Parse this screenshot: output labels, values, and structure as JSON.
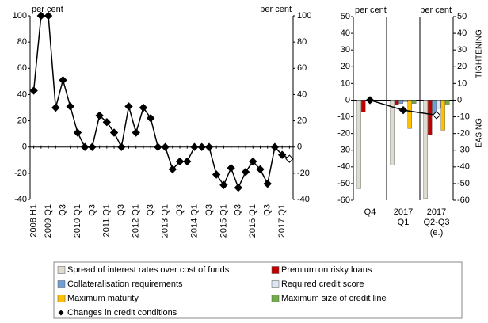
{
  "chart_data": [
    {
      "type": "line",
      "y_axis_label": "per cent",
      "y2_axis_label": "per cent",
      "categories": [
        "2008 H1",
        null,
        "2009 Q1",
        null,
        "Q3",
        null,
        "2010 Q1",
        null,
        "Q3",
        null,
        "2011 Q1",
        null,
        "Q3",
        null,
        "2012 Q1",
        null,
        "Q3",
        null,
        "2013 Q1",
        null,
        "Q3",
        null,
        "2014 Q1",
        null,
        "Q3",
        null,
        "2015 Q1",
        null,
        "Q3",
        null,
        "2016 Q1",
        null,
        "Q3",
        null,
        "2017 Q1",
        null
      ],
      "values": [
        43,
        100,
        100,
        30,
        51,
        31,
        11,
        0,
        0,
        24,
        19,
        11,
        0,
        31,
        11,
        30,
        22,
        0,
        0,
        -17,
        -11,
        -11,
        0,
        0,
        0,
        -21,
        -29,
        -16,
        -31,
        -19,
        -11,
        -17,
        -28,
        0,
        -6,
        -9
      ],
      "color": "#000000",
      "ylim": [
        -40,
        100
      ],
      "yticks": [
        -40,
        -20,
        0,
        20,
        40,
        60,
        80,
        100
      ],
      "y2lim": [
        -40,
        100
      ],
      "y2ticks": [
        -40,
        -20,
        0,
        20,
        40,
        60,
        80,
        100
      ]
    },
    {
      "type": "bar",
      "y_axis_label": "per cent",
      "y2_axis_label": "per cent",
      "annotations": [
        "TIGHTENING",
        "EASING"
      ],
      "categories": [
        "Q4",
        "2017 Q1",
        "2017 Q2-Q3 (e.)"
      ],
      "series": [
        {
          "name": "Spread of interest rates over cost of funds",
          "color": "#dedbcf",
          "values": [
            -53,
            -39,
            -59
          ]
        },
        {
          "name": "Premium on risky loans",
          "color": "#c00000",
          "values": [
            -7,
            -3,
            -21
          ]
        },
        {
          "name": "Collateralisation requirements",
          "color": "#6f9fd8",
          "values": [
            0,
            -2,
            -8
          ]
        },
        {
          "name": "Required credit score",
          "color": "#dce6f2",
          "values": [
            0,
            -1,
            -5
          ]
        },
        {
          "name": "Maximum maturity",
          "color": "#ffc000",
          "values": [
            0,
            -17,
            -18
          ]
        },
        {
          "name": "Maximum size of credit line",
          "color": "#70ad47",
          "values": [
            0,
            -2,
            -3
          ]
        },
        {
          "name": "Changes in credit conditions",
          "type": "line",
          "color": "#000000",
          "values": [
            0,
            -6,
            -9
          ]
        }
      ],
      "ylim": [
        -60,
        50
      ],
      "yticks": [
        -60,
        -50,
        -40,
        -30,
        -20,
        -10,
        0,
        10,
        20,
        30,
        40,
        50
      ],
      "y2lim": [
        -60,
        50
      ],
      "y2ticks": [
        -60,
        -50,
        -40,
        -30,
        -20,
        -10,
        0,
        10,
        20,
        30,
        40,
        50
      ]
    }
  ]
}
